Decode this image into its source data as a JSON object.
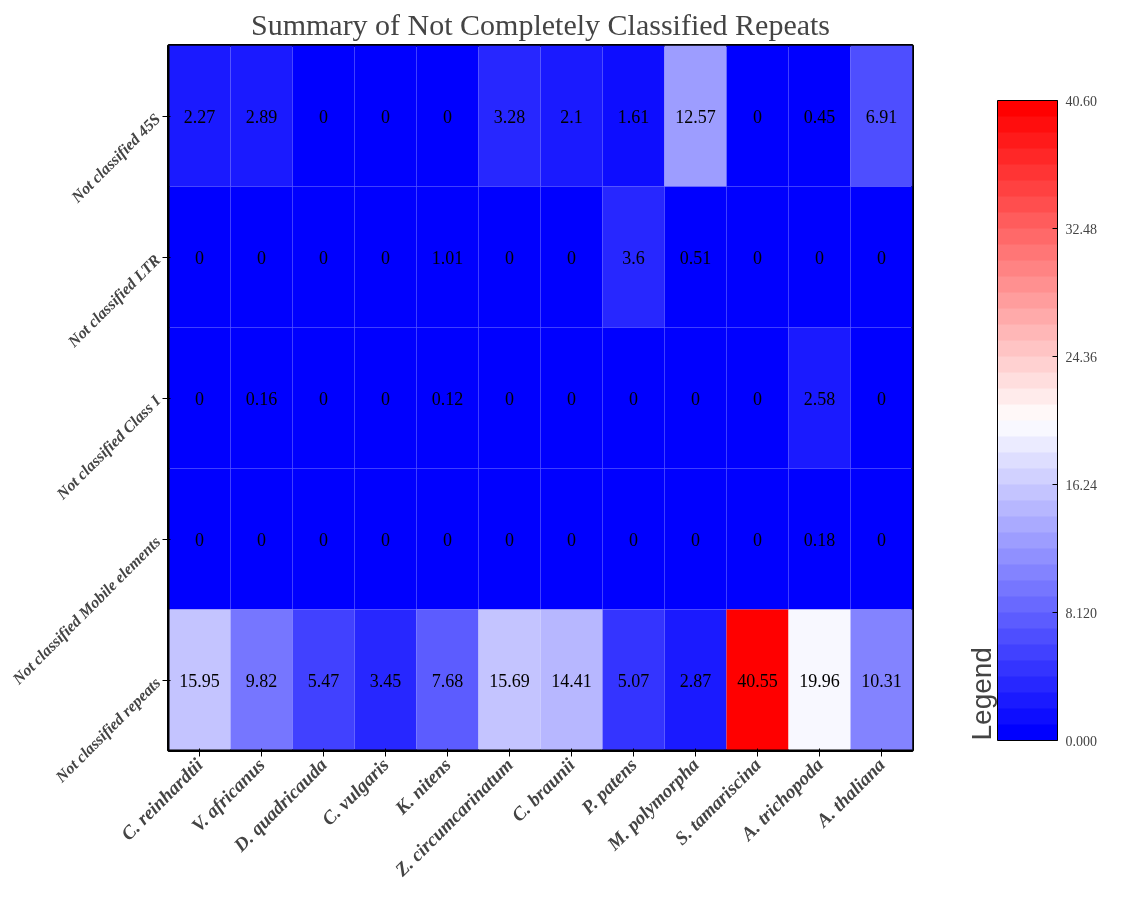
{
  "chart_data": {
    "type": "heatmap",
    "title": "Summary of Not Completely Classified Repeats",
    "clabel": "Legend",
    "categories": [
      "C. reinhardtii",
      "V. africanus",
      "D. quadricauda",
      "C. vulgaris",
      "K. nitens",
      "Z. circumcarinatum",
      "C. braunii",
      "P. patens",
      "M. polymorpha",
      "S. tamariscina",
      "A. trichopoda",
      "A. thaliana"
    ],
    "y_categories": [
      "Not classified 45S",
      "Not classified LTR",
      "Not classified Class I",
      "Not classified Mobile elements",
      "Not classified repeats"
    ],
    "cells": [
      [
        2.27,
        2.89,
        0,
        0,
        0,
        3.28,
        2.1,
        1.61,
        12.57,
        0,
        0.45,
        6.91
      ],
      [
        0,
        0,
        0,
        0,
        1.01,
        0,
        0,
        3.6,
        0.51,
        0,
        0,
        0
      ],
      [
        0,
        0.16,
        0,
        0,
        0.12,
        0,
        0,
        0,
        0,
        0,
        2.58,
        0
      ],
      [
        0,
        0,
        0,
        0,
        0,
        0,
        0,
        0,
        0,
        0,
        0.18,
        0
      ],
      [
        15.95,
        9.82,
        5.47,
        3.45,
        7.68,
        15.69,
        14.41,
        5.07,
        2.87,
        40.55,
        19.96,
        10.31
      ]
    ],
    "clim": [
      0,
      40.6
    ],
    "cticks": [
      {
        "value": 0,
        "label": "0.000"
      },
      {
        "value": 8.12,
        "label": "8.120"
      },
      16.24,
      24.36,
      32.48,
      {
        "value": 40.6,
        "label": "40.60"
      }
    ],
    "data_labels": true,
    "grid": false
  }
}
